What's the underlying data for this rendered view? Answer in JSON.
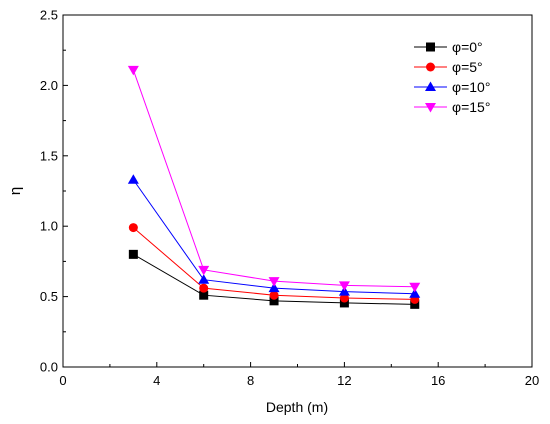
{
  "chart_data": {
    "type": "line",
    "title": "",
    "xlabel": "Depth (m)",
    "ylabel": "η",
    "xlim": [
      0,
      20
    ],
    "ylim": [
      0.0,
      2.5
    ],
    "xticks": [
      0,
      4,
      8,
      12,
      16,
      20
    ],
    "yticks": [
      0.0,
      0.5,
      1.0,
      1.5,
      2.0,
      2.5
    ],
    "xtick_labels": [
      "0",
      "4",
      "8",
      "12",
      "16",
      "20"
    ],
    "ytick_labels": [
      "0.0",
      "0.5",
      "1.0",
      "1.5",
      "2.0",
      "2.5"
    ],
    "grid": false,
    "legend_position": "top-right",
    "x": [
      3,
      6,
      9,
      12,
      15
    ],
    "series": [
      {
        "name": "φ=0°",
        "color": "#000000",
        "marker": "square",
        "values": [
          0.8,
          0.51,
          0.47,
          0.455,
          0.445
        ]
      },
      {
        "name": "φ=5°",
        "color": "#ff0000",
        "marker": "circle",
        "values": [
          0.99,
          0.56,
          0.51,
          0.49,
          0.48
        ]
      },
      {
        "name": "φ=10°",
        "color": "#0000ff",
        "marker": "triangle-up",
        "values": [
          1.33,
          0.62,
          0.56,
          0.535,
          0.52
        ]
      },
      {
        "name": "φ=15°",
        "color": "#ff00ff",
        "marker": "triangle-down",
        "values": [
          2.11,
          0.69,
          0.61,
          0.58,
          0.57
        ]
      }
    ]
  }
}
